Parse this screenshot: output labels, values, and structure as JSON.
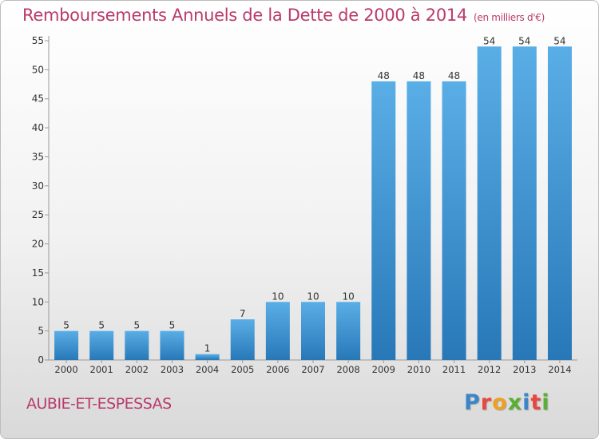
{
  "header": {
    "title": "Remboursements Annuels de la Dette de 2000 à 2014",
    "unit": "(en milliers d'€)"
  },
  "footer": {
    "commune": "AUBIE-ET-ESPESSAS",
    "logo": "Proxiti"
  },
  "colors": {
    "title": "#b83b6b",
    "bar_top": "#5aaee6",
    "bar_bottom": "#2878b8"
  },
  "chart_data": {
    "type": "bar",
    "title": "Remboursements Annuels de la Dette de 2000 à 2014",
    "xlabel": "",
    "ylabel": "en milliers d'€",
    "categories": [
      "2000",
      "2001",
      "2002",
      "2003",
      "2004",
      "2005",
      "2006",
      "2007",
      "2008",
      "2009",
      "2010",
      "2011",
      "2012",
      "2013",
      "2014"
    ],
    "values": [
      5,
      5,
      5,
      5,
      1,
      7,
      10,
      10,
      10,
      48,
      48,
      48,
      54,
      54,
      54
    ],
    "ylim": [
      0,
      55
    ],
    "yticks": [
      0,
      5,
      10,
      15,
      20,
      25,
      30,
      35,
      40,
      45,
      50,
      55
    ],
    "grid": false
  }
}
